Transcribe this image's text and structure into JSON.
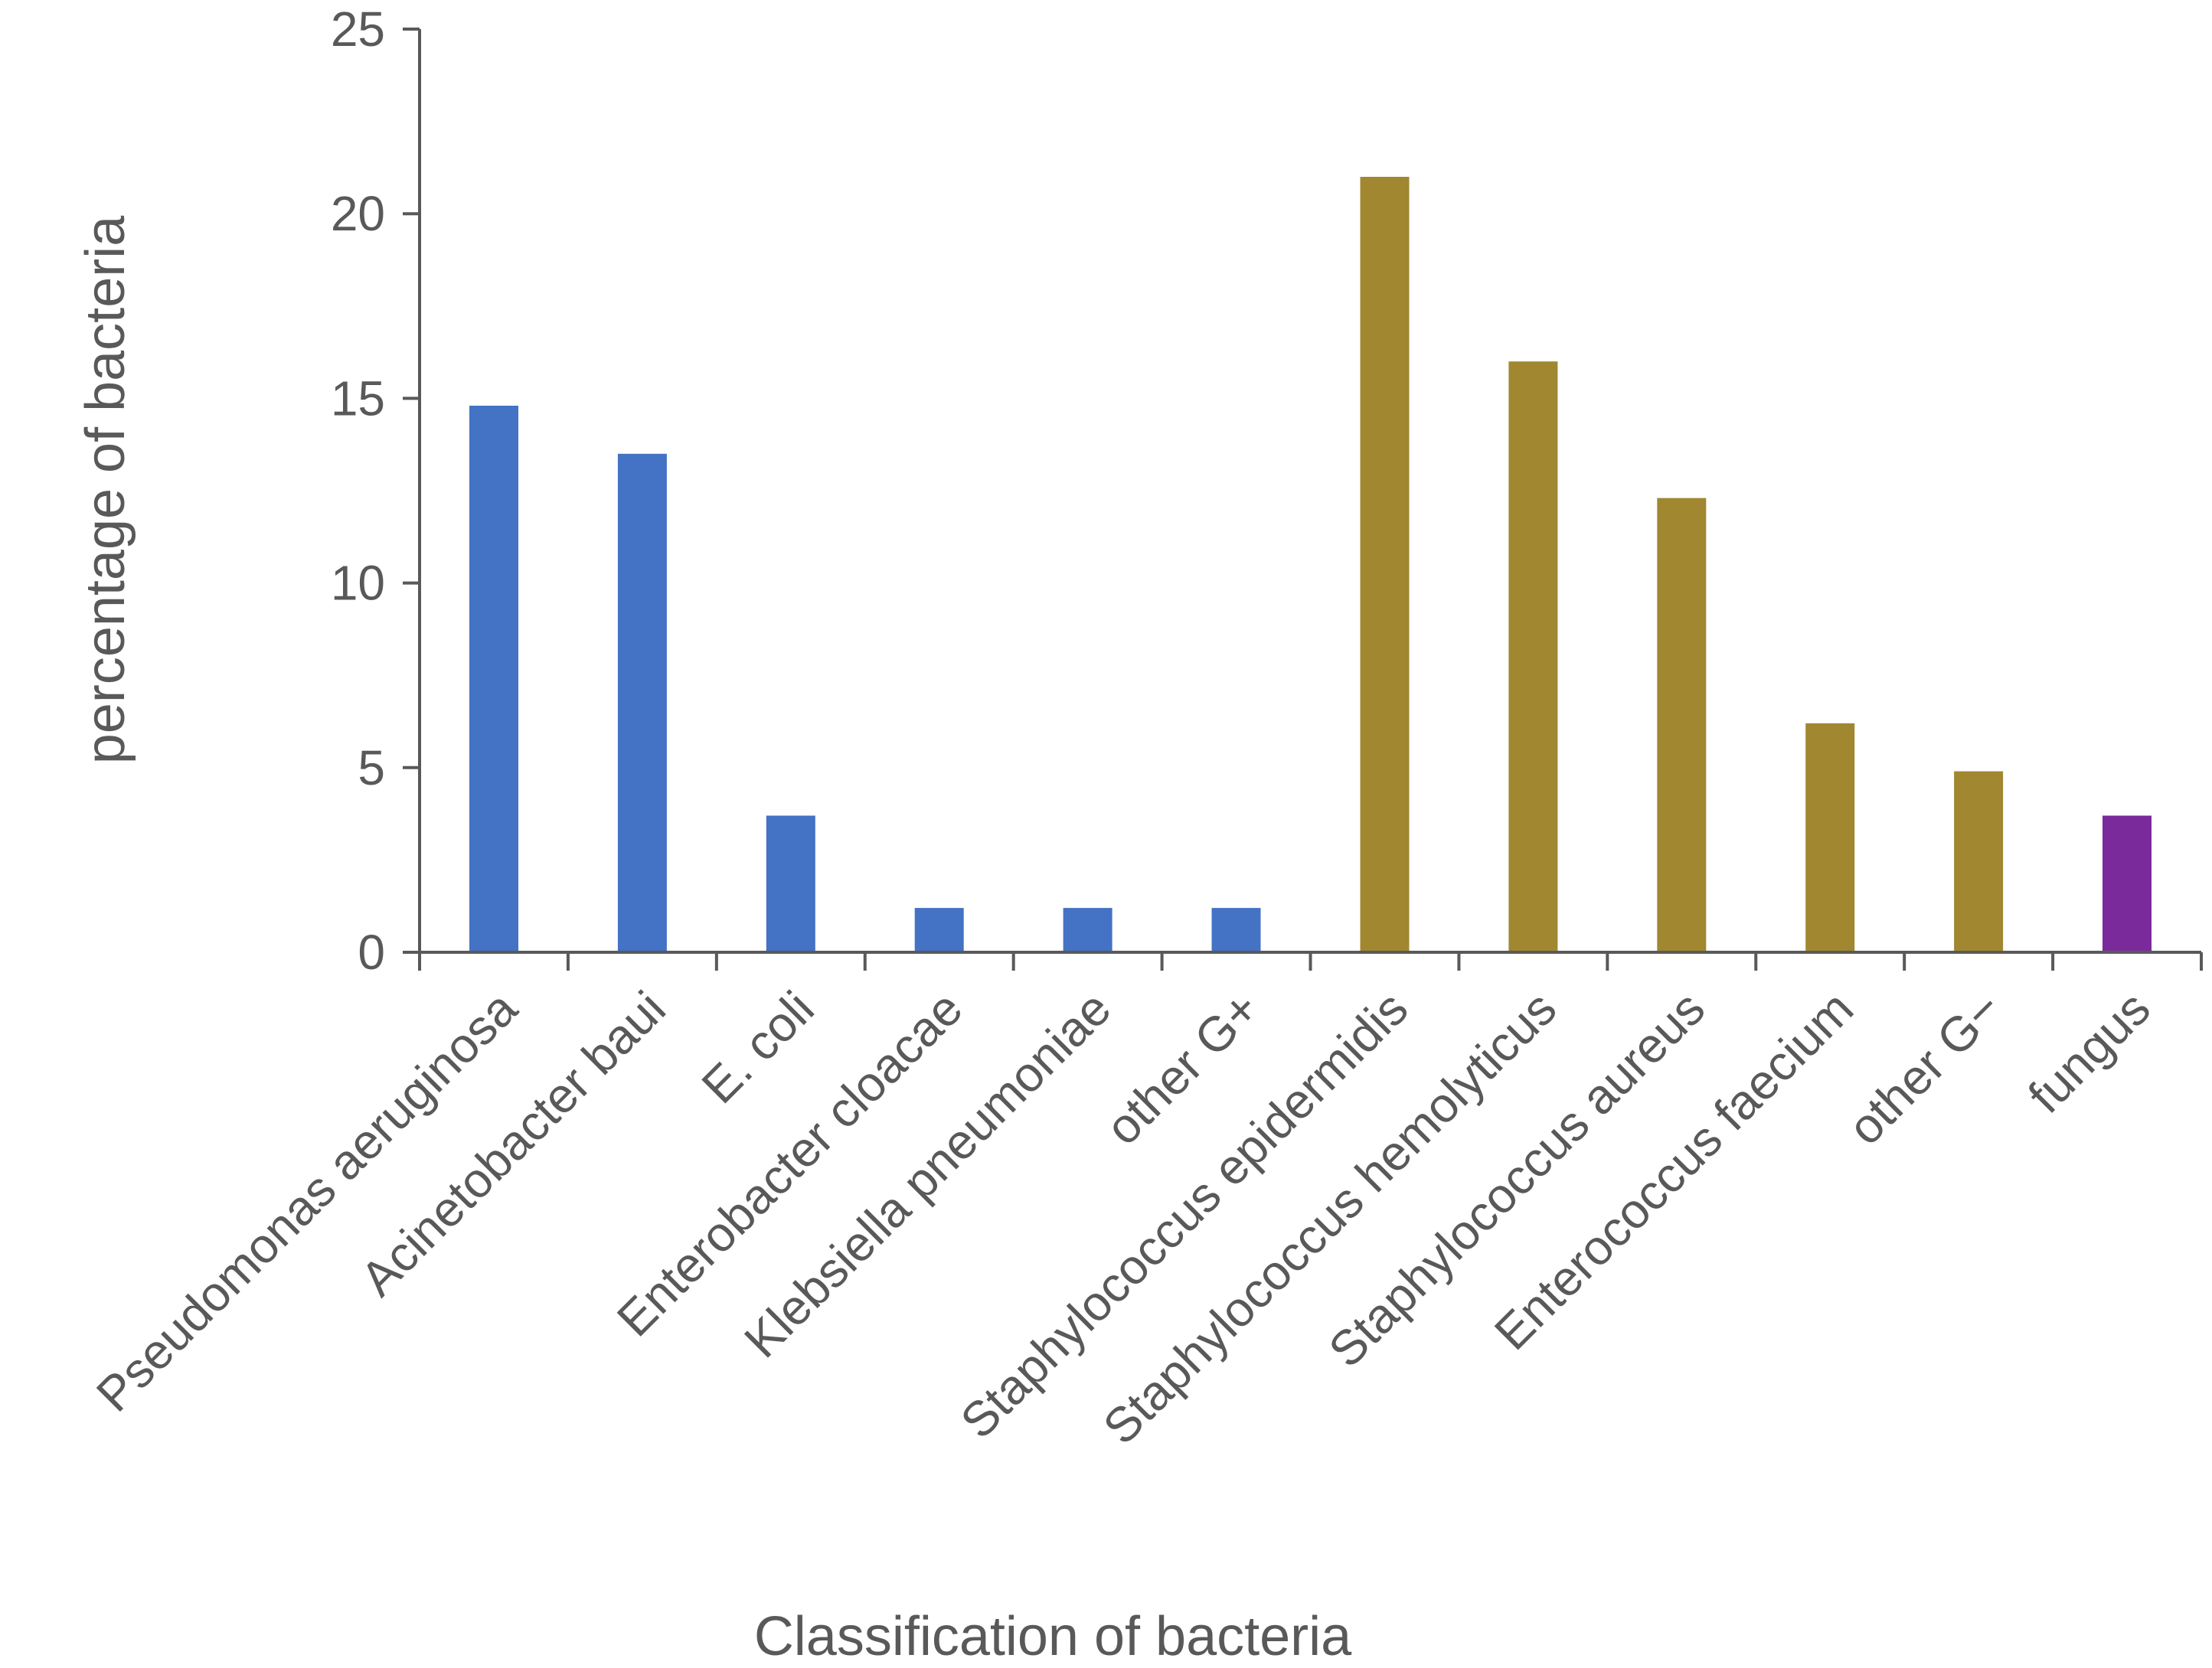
{
  "chart_data": {
    "type": "bar",
    "title": "",
    "xlabel": "Classification of bacteria",
    "ylabel": "percentage of bacteria",
    "ylim": [
      0,
      25
    ],
    "yticks": [
      0,
      5,
      10,
      15,
      20,
      25
    ],
    "grid": false,
    "legend": "none",
    "categories": [
      "Pseudomonas aeruginosa",
      "Acinetobacter baui",
      "E. coli",
      "Enterobacter cloacae",
      "Klebsiella pneumoniae",
      "other G+",
      "Staphylococcus epidermidis",
      "Staphylococcus hemolyticus",
      "Staphylococcus aureus",
      "Enterococcus faecium",
      "other G−",
      "fungus"
    ],
    "values": [
      14.8,
      13.5,
      3.7,
      1.2,
      1.2,
      1.2,
      21.0,
      16.0,
      12.3,
      6.2,
      4.9,
      3.7
    ],
    "colors": [
      "#4472C4",
      "#4472C4",
      "#4472C4",
      "#4472C4",
      "#4472C4",
      "#4472C4",
      "#A08730",
      "#A08730",
      "#A08730",
      "#A08730",
      "#A08730",
      "#7A2A9A"
    ],
    "axis_color": "#595959"
  }
}
